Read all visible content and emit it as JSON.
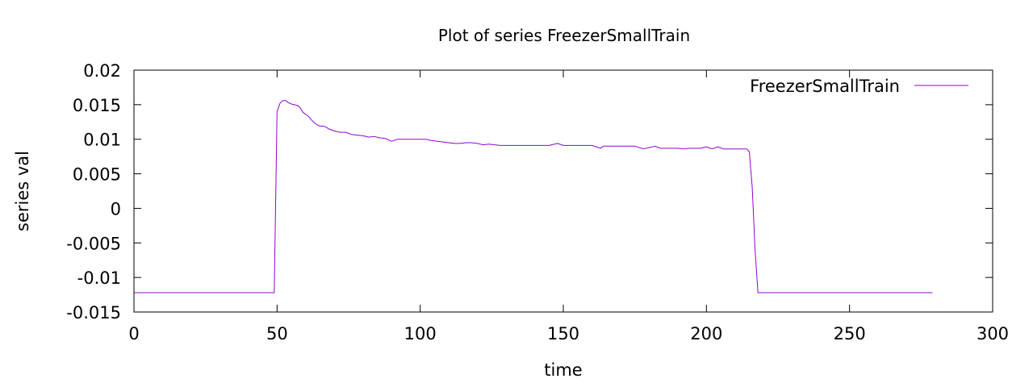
{
  "chart_data": {
    "type": "line",
    "title": "Plot of series FreezerSmallTrain",
    "xlabel": "time",
    "ylabel": "series val",
    "xlim": [
      0,
      300
    ],
    "ylim": [
      -0.015,
      0.02
    ],
    "xticks": [
      0,
      50,
      100,
      150,
      200,
      250,
      300
    ],
    "yticks": [
      -0.015,
      -0.01,
      -0.005,
      0,
      0.005,
      0.01,
      0.015,
      0.02
    ],
    "xtick_labels": [
      "0",
      "50",
      "100",
      "150",
      "200",
      "250",
      "300"
    ],
    "ytick_labels": [
      "-0.015",
      "-0.01",
      "-0.005",
      "0",
      "0.005",
      "0.01",
      "0.015",
      "0.02"
    ],
    "grid": false,
    "legend_position": "top-right",
    "series": [
      {
        "name": "FreezerSmallTrain",
        "color": "#9400d3",
        "x": [
          0,
          49,
          50,
          51,
          52,
          53,
          54,
          55,
          56,
          57,
          58,
          59,
          60,
          61,
          62,
          63,
          64,
          65,
          66,
          67,
          68,
          70,
          72,
          74,
          76,
          78,
          80,
          82,
          84,
          86,
          88,
          90,
          92,
          94,
          96,
          98,
          100,
          102,
          104,
          106,
          108,
          110,
          112,
          114,
          116,
          118,
          120,
          122,
          124,
          126,
          128,
          130,
          135,
          140,
          145,
          148,
          150,
          155,
          160,
          163,
          164,
          166,
          170,
          175,
          178,
          180,
          182,
          184,
          186,
          188,
          190,
          192,
          194,
          196,
          198,
          200,
          202,
          204,
          206,
          208,
          210,
          212,
          214,
          215,
          216,
          217,
          218,
          220,
          230,
          240,
          250,
          260,
          270,
          279
        ],
        "values": [
          -0.0122,
          -0.0122,
          0.014,
          0.0152,
          0.0156,
          0.0156,
          0.0153,
          0.0151,
          0.015,
          0.0149,
          0.0146,
          0.0139,
          0.0136,
          0.0133,
          0.0128,
          0.0124,
          0.0121,
          0.0119,
          0.0119,
          0.0118,
          0.0115,
          0.0112,
          0.011,
          0.011,
          0.0107,
          0.0106,
          0.0105,
          0.0103,
          0.0104,
          0.0102,
          0.0101,
          0.0097,
          0.01,
          0.01,
          0.01,
          0.01,
          0.01,
          0.01,
          0.0098,
          0.0097,
          0.0096,
          0.0095,
          0.0094,
          0.0094,
          0.0095,
          0.0095,
          0.0094,
          0.0092,
          0.0093,
          0.0092,
          0.0091,
          0.0091,
          0.0091,
          0.0091,
          0.0091,
          0.0094,
          0.0091,
          0.0091,
          0.0091,
          0.0087,
          0.009,
          0.009,
          0.009,
          0.009,
          0.0086,
          0.0088,
          0.009,
          0.0087,
          0.0087,
          0.0087,
          0.0087,
          0.0086,
          0.0087,
          0.0087,
          0.0087,
          0.0089,
          0.0086,
          0.0089,
          0.0086,
          0.0086,
          0.0086,
          0.0086,
          0.0086,
          0.0082,
          0.003,
          -0.006,
          -0.0122,
          -0.0122,
          -0.0122,
          -0.0122,
          -0.0122,
          -0.0122,
          -0.0122,
          -0.0122
        ]
      }
    ]
  }
}
